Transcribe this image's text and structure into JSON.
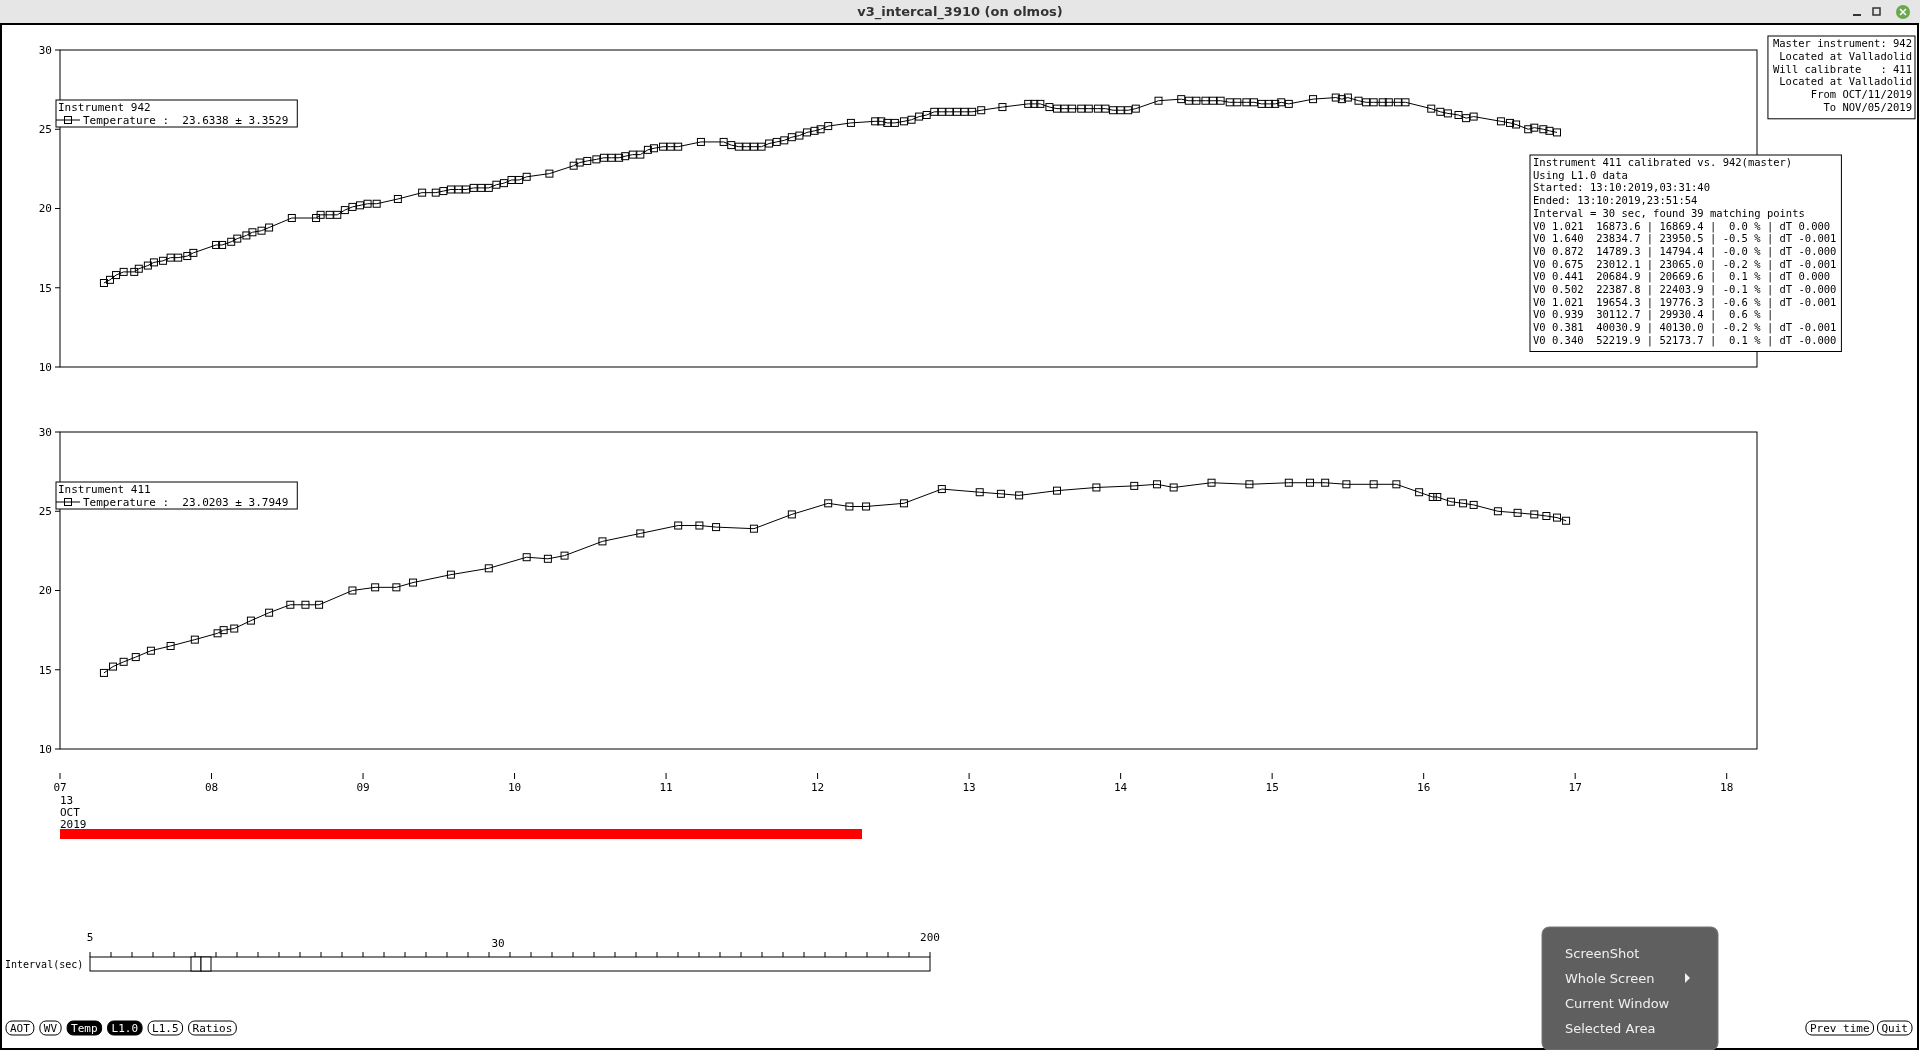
{
  "chart_data": [
    {
      "type": "line",
      "title": "v3_intercal_3910 (on olmos)",
      "legend_title": "Instrument 942",
      "legend": "top left",
      "marker": "square",
      "tick_labels": "y",
      "xlim": [
        7,
        18.2
      ],
      "ylim": [
        10,
        30
      ],
      "yticks": [
        10,
        15,
        20,
        25,
        30
      ],
      "x": [
        7.29,
        7.33,
        7.37,
        7.42,
        7.49,
        7.52,
        7.58,
        7.62,
        7.68,
        7.73,
        7.78,
        7.84,
        7.88,
        8.03,
        8.07,
        8.13,
        8.17,
        8.23,
        8.27,
        8.33,
        8.38,
        8.53,
        8.69,
        8.72,
        8.78,
        8.83,
        8.88,
        8.93,
        8.98,
        9.03,
        9.09,
        9.23,
        9.39,
        9.48,
        9.53,
        9.58,
        9.63,
        9.68,
        9.73,
        9.78,
        9.83,
        9.88,
        9.93,
        9.98,
        10.03,
        10.08,
        10.23,
        10.39,
        10.43,
        10.48,
        10.54,
        10.59,
        10.64,
        10.69,
        10.73,
        10.78,
        10.83,
        10.88,
        10.92,
        10.98,
        11.03,
        11.08,
        11.23,
        11.38,
        11.43,
        11.48,
        11.53,
        11.58,
        11.63,
        11.68,
        11.73,
        11.78,
        11.83,
        11.88,
        11.93,
        11.98,
        12.02,
        12.07,
        12.22,
        12.38,
        12.42,
        12.46,
        12.51,
        12.57,
        12.62,
        12.67,
        12.72,
        12.77,
        12.82,
        12.87,
        12.92,
        12.97,
        13.02,
        13.08,
        13.22,
        13.39,
        13.43,
        13.47,
        13.53,
        13.58,
        13.63,
        13.68,
        13.74,
        13.79,
        13.85,
        13.9,
        13.95,
        14.0,
        14.05,
        14.1,
        14.25,
        14.4,
        14.45,
        14.5,
        14.56,
        14.61,
        14.66,
        14.72,
        14.77,
        14.83,
        14.88,
        14.93,
        14.98,
        15.02,
        15.06,
        15.11,
        15.27,
        15.42,
        15.46,
        15.5,
        15.57,
        15.62,
        15.67,
        15.73,
        15.77,
        15.83,
        15.88,
        16.05,
        16.11,
        16.16,
        16.23,
        16.28,
        16.33,
        16.51,
        16.57,
        16.61,
        16.69,
        16.73,
        16.79,
        16.83,
        16.88
      ],
      "series": [
        {
          "name": "Temperature :  23.6338 ± 3.3529",
          "color": "#000000",
          "values": [
            15.3,
            15.5,
            15.8,
            16.0,
            16.0,
            16.2,
            16.4,
            16.6,
            16.7,
            16.9,
            16.9,
            17.0,
            17.2,
            17.7,
            17.7,
            17.9,
            18.1,
            18.3,
            18.5,
            18.6,
            18.8,
            19.4,
            19.4,
            19.6,
            19.6,
            19.6,
            19.9,
            20.1,
            20.2,
            20.3,
            20.3,
            20.6,
            21.0,
            21.0,
            21.1,
            21.2,
            21.2,
            21.2,
            21.3,
            21.3,
            21.3,
            21.5,
            21.6,
            21.8,
            21.8,
            22.0,
            22.2,
            22.7,
            22.9,
            23.0,
            23.1,
            23.2,
            23.2,
            23.2,
            23.3,
            23.4,
            23.4,
            23.7,
            23.8,
            23.9,
            23.9,
            23.9,
            24.2,
            24.2,
            24.0,
            23.9,
            23.9,
            23.9,
            23.9,
            24.1,
            24.2,
            24.3,
            24.5,
            24.6,
            24.8,
            24.9,
            25.0,
            25.2,
            25.4,
            25.5,
            25.5,
            25.4,
            25.4,
            25.5,
            25.6,
            25.8,
            25.9,
            26.1,
            26.1,
            26.1,
            26.1,
            26.1,
            26.1,
            26.2,
            26.4,
            26.6,
            26.6,
            26.6,
            26.4,
            26.3,
            26.3,
            26.3,
            26.3,
            26.3,
            26.3,
            26.3,
            26.2,
            26.2,
            26.2,
            26.3,
            26.8,
            26.9,
            26.8,
            26.8,
            26.8,
            26.8,
            26.8,
            26.7,
            26.7,
            26.7,
            26.7,
            26.6,
            26.6,
            26.6,
            26.7,
            26.6,
            26.9,
            27.0,
            26.9,
            27.0,
            26.8,
            26.7,
            26.7,
            26.7,
            26.7,
            26.7,
            26.7,
            26.3,
            26.1,
            26.0,
            25.9,
            25.7,
            25.8,
            25.5,
            25.4,
            25.3,
            25.0,
            25.1,
            25.0,
            24.9,
            24.8
          ]
        }
      ]
    },
    {
      "type": "line",
      "legend_title": "Instrument 411",
      "legend": "top left",
      "marker": "square",
      "xlabel": "13 OCT 2019",
      "xlim": [
        7,
        18.2
      ],
      "ylim": [
        10,
        30
      ],
      "yticks": [
        10,
        15,
        20,
        25,
        30
      ],
      "xticks": [
        {
          "value": 7,
          "label": "07"
        },
        {
          "value": 8,
          "label": "08"
        },
        {
          "value": 9,
          "label": "09"
        },
        {
          "value": 10,
          "label": "10"
        },
        {
          "value": 11,
          "label": "11"
        },
        {
          "value": 12,
          "label": "12"
        },
        {
          "value": 13,
          "label": "13"
        },
        {
          "value": 14,
          "label": "14"
        },
        {
          "value": 15,
          "label": "15"
        },
        {
          "value": 16,
          "label": "16"
        },
        {
          "value": 17,
          "label": "17"
        },
        {
          "value": 18,
          "label": "18"
        }
      ],
      "x": [
        7.29,
        7.35,
        7.42,
        7.5,
        7.6,
        7.73,
        7.89,
        8.04,
        8.08,
        8.15,
        8.26,
        8.38,
        8.52,
        8.62,
        8.71,
        8.93,
        9.08,
        9.22,
        9.33,
        9.58,
        9.83,
        10.08,
        10.22,
        10.33,
        10.58,
        10.83,
        11.08,
        11.22,
        11.33,
        11.58,
        11.83,
        12.07,
        12.21,
        12.32,
        12.57,
        12.82,
        13.07,
        13.21,
        13.33,
        13.58,
        13.84,
        14.09,
        14.24,
        14.35,
        14.6,
        14.85,
        15.11,
        15.25,
        15.35,
        15.49,
        15.67,
        15.82,
        15.97,
        16.06,
        16.09,
        16.18,
        16.26,
        16.33,
        16.49,
        16.62,
        16.73,
        16.81,
        16.88,
        16.94
      ],
      "series": [
        {
          "name": "Temperature :  23.0203 ± 3.7949",
          "color": "#000000",
          "values": [
            14.8,
            15.2,
            15.5,
            15.8,
            16.2,
            16.5,
            16.9,
            17.3,
            17.5,
            17.6,
            18.1,
            18.6,
            19.1,
            19.1,
            19.1,
            20.0,
            20.2,
            20.2,
            20.5,
            21.0,
            21.4,
            22.1,
            22.0,
            22.2,
            23.1,
            23.6,
            24.1,
            24.1,
            24.0,
            23.9,
            24.8,
            25.5,
            25.3,
            25.3,
            25.5,
            26.4,
            26.2,
            26.1,
            26.0,
            26.3,
            26.5,
            26.6,
            26.7,
            26.5,
            26.8,
            26.7,
            26.8,
            26.8,
            26.8,
            26.7,
            26.7,
            26.7,
            26.2,
            25.9,
            25.9,
            25.6,
            25.5,
            25.4,
            25.0,
            24.9,
            24.8,
            24.7,
            24.6,
            24.4
          ]
        }
      ]
    },
    {
      "type": "other",
      "annotations": [
        "Master instrument: 942",
        "Located at Valladolid",
        "Will calibrate   : 411",
        "Located at Valladolid",
        "From OCT/11/2019",
        "To NOV/05/2019"
      ]
    },
    {
      "type": "other",
      "annotations": [
        "Instrument 411 calibrated vs. 942(master)",
        "Using L1.0 data",
        "Started: 13:10:2019,03:31:40",
        "Ended: 13:10:2019,23:51:54",
        "Interval = 30 sec, found 39 matching points",
        "V0 1.021  16873.6 | 16869.4 |  0.0 % | dT 0.000",
        "V0 1.640  23834.7 | 23950.5 | -0.5 % | dT -0.001",
        "V0 0.872  14789.3 | 14794.4 | -0.0 % | dT -0.000",
        "V0 0.675  23012.1 | 23065.0 | -0.2 % | dT -0.001",
        "V0 0.441  20684.9 | 20669.6 |  0.1 % | dT 0.000",
        "V0 0.502  22387.8 | 22403.9 | -0.1 % | dT -0.000",
        "V0 1.021  19654.3 | 19776.3 | -0.6 % | dT -0.001",
        "V0 0.939  30112.7 | 29930.4 |  0.6 % |",
        "V0 0.381  40030.9 | 40130.0 | -0.2 % | dT -0.001",
        "V0 0.340  52219.9 | 52173.7 |  0.1 % | dT -0.000"
      ]
    },
    {
      "type": "other",
      "annotations": [
        "Interval(sec)",
        "5",
        "30",
        "200",
        "AOT",
        "WV",
        "Temp",
        "L1.0",
        "L1.5",
        "Ratios",
        "Prev time",
        "Quit",
        "ScreenShot",
        "Whole Screen",
        "Current Window",
        "Selected Area"
      ]
    }
  ]
}
